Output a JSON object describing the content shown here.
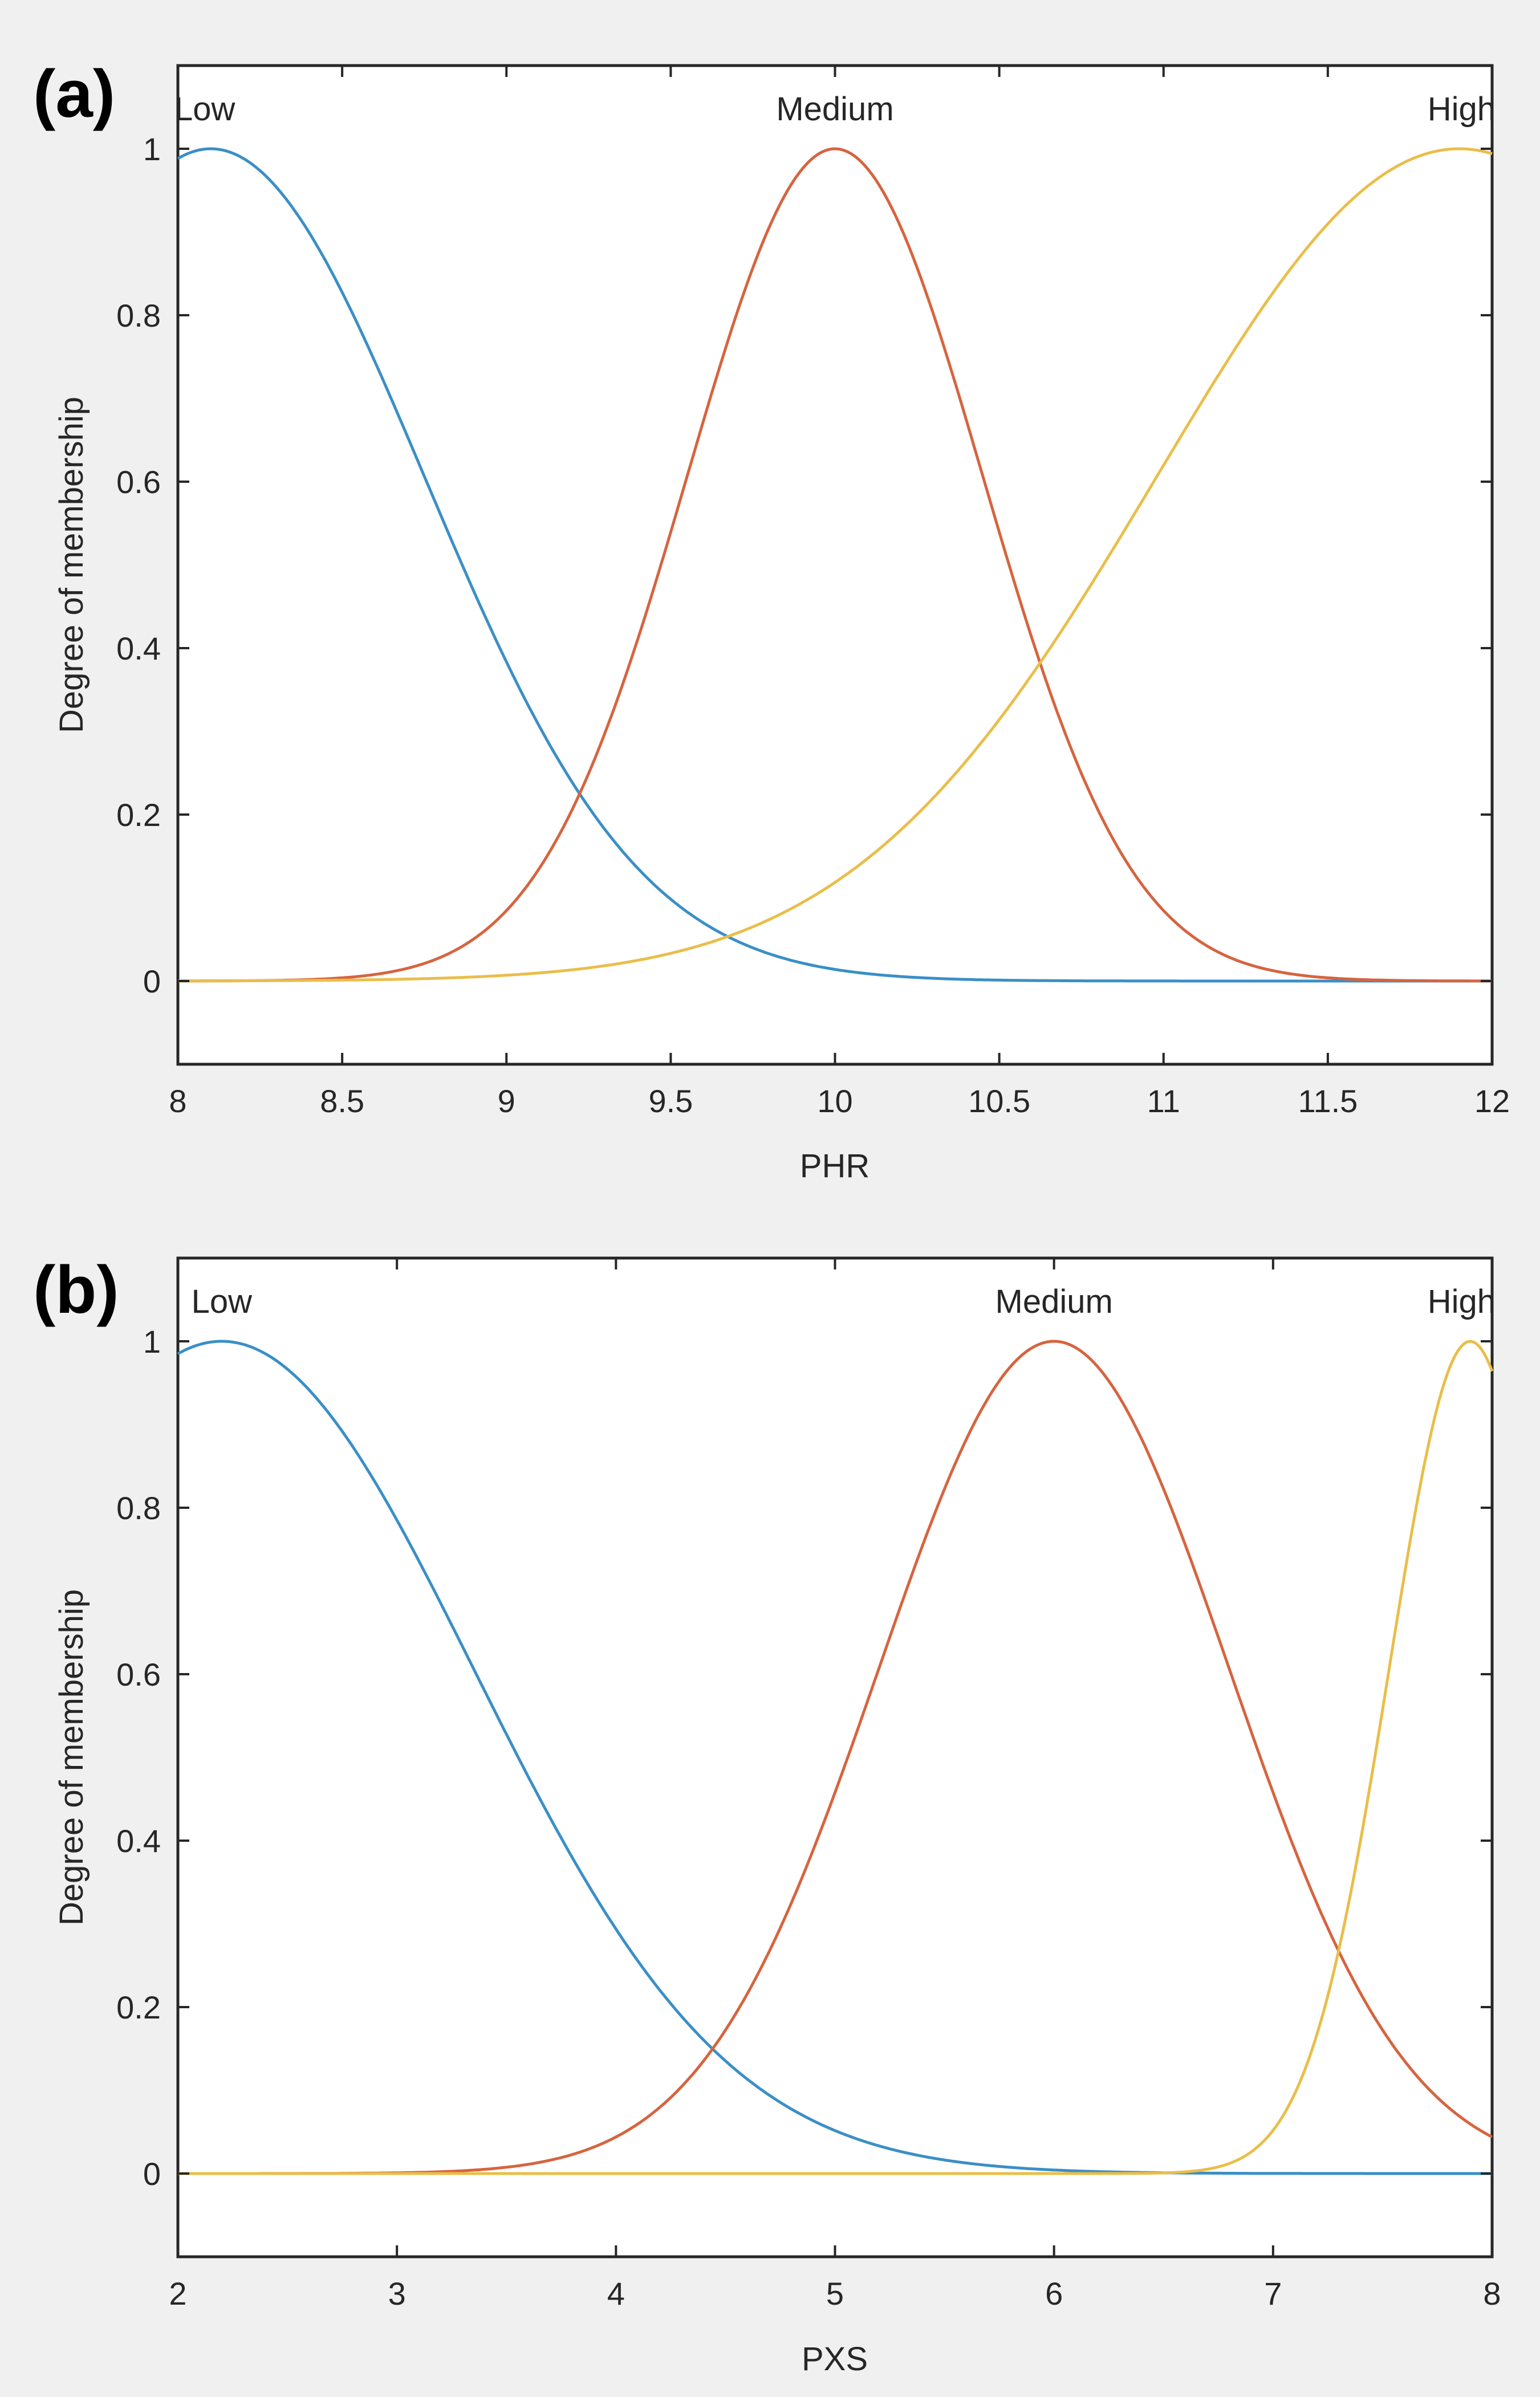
{
  "colors": {
    "figure_background": "#f0f0f0",
    "plot_background": "#ffffff",
    "axis": "#262626",
    "low": "#3a8fc7",
    "medium": "#d6643f",
    "high": "#e9be4a"
  },
  "chart_data": [
    {
      "type": "line",
      "panel_label": "(a)",
      "title": "",
      "xlabel": "PHR",
      "ylabel": "Degree of membership",
      "xlim": [
        8,
        12
      ],
      "ylim": [
        -0.1,
        1.1
      ],
      "xticks": [
        8,
        8.5,
        9,
        9.5,
        10,
        10.5,
        11,
        11.5,
        12
      ],
      "xtick_labels": [
        "8",
        "8.5",
        "9",
        "9.5",
        "10",
        "10.5",
        "11",
        "11.5",
        "12"
      ],
      "yticks": [
        0,
        0.2,
        0.4,
        0.6,
        0.8,
        1
      ],
      "ytick_labels": [
        "0",
        "0.2",
        "0.4",
        "0.6",
        "0.8",
        "1"
      ],
      "grid": false,
      "series": [
        {
          "name": "Low",
          "color_key": "low",
          "mf": "gaussmf",
          "sigma": 0.65,
          "center": 8.1,
          "label_x": 8.05
        },
        {
          "name": "Medium",
          "color_key": "medium",
          "mf": "gaussmf",
          "sigma": 0.45,
          "center": 10.0,
          "label_x": 10.0
        },
        {
          "name": "High",
          "color_key": "high",
          "mf": "gaussmf",
          "sigma": 0.92,
          "center": 11.9,
          "label_x": 11.9
        }
      ]
    },
    {
      "type": "line",
      "panel_label": "(b)",
      "title": "",
      "xlabel": "PXS",
      "ylabel": "Degree of membership",
      "xlim": [
        2,
        8
      ],
      "ylim": [
        -0.1,
        1.1
      ],
      "xticks": [
        2,
        3,
        4,
        5,
        6,
        7,
        8
      ],
      "xtick_labels": [
        "2",
        "3",
        "4",
        "5",
        "6",
        "7",
        "8"
      ],
      "yticks": [
        0,
        0.2,
        0.4,
        0.6,
        0.8,
        1
      ],
      "ytick_labels": [
        "0",
        "0.2",
        "0.4",
        "0.6",
        "0.8",
        "1"
      ],
      "grid": false,
      "series": [
        {
          "name": "Low",
          "color_key": "low",
          "mf": "gaussmf",
          "sigma": 1.15,
          "center": 2.2,
          "label_x": 2.2
        },
        {
          "name": "Medium",
          "color_key": "medium",
          "mf": "gaussmf",
          "sigma": 0.8,
          "center": 6.0,
          "label_x": 6.0
        },
        {
          "name": "High",
          "color_key": "high",
          "mf": "gaussmf",
          "sigma": 0.37,
          "center": 7.9,
          "label_x": 7.9
        }
      ]
    }
  ]
}
